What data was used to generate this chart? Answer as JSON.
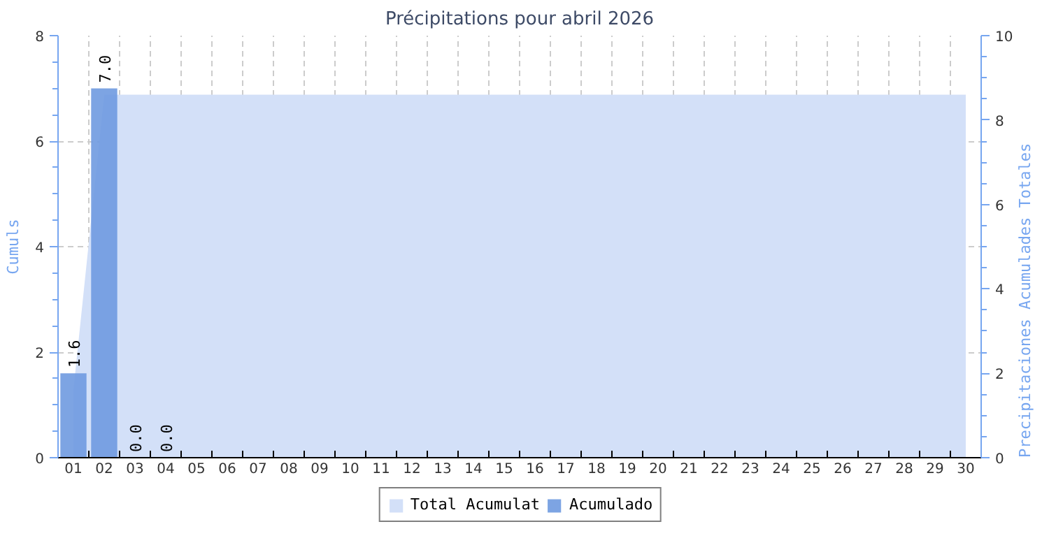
{
  "chart_data": {
    "type": "bar",
    "title": "Précipitations pour abril 2026",
    "ylabel": "Cumuls",
    "y2label": "Precipitaciones Acumulades Totales",
    "categories": [
      "01",
      "02",
      "03",
      "04",
      "05",
      "06",
      "07",
      "08",
      "09",
      "10",
      "11",
      "12",
      "13",
      "14",
      "15",
      "16",
      "17",
      "18",
      "19",
      "20",
      "21",
      "22",
      "23",
      "24",
      "25",
      "26",
      "27",
      "28",
      "29",
      "30"
    ],
    "series": [
      {
        "name": "Total Acumulat",
        "type": "area",
        "axis": "y2",
        "color": "#d3e0f8",
        "values": [
          1.6,
          8.6,
          8.6,
          8.6,
          8.6,
          8.6,
          8.6,
          8.6,
          8.6,
          8.6,
          8.6,
          8.6,
          8.6,
          8.6,
          8.6,
          8.6,
          8.6,
          8.6,
          8.6,
          8.6,
          8.6,
          8.6,
          8.6,
          8.6,
          8.6,
          8.6,
          8.6,
          8.6,
          8.6,
          8.6
        ]
      },
      {
        "name": "Acumulado",
        "color": "#6f9ae0",
        "values": [
          1.6,
          7.0,
          0.0,
          0.0,
          null,
          null,
          null,
          null,
          null,
          null,
          null,
          null,
          null,
          null,
          null,
          null,
          null,
          null,
          null,
          null,
          null,
          null,
          null,
          null,
          null,
          null,
          null,
          null,
          null,
          null
        ],
        "value_labels": [
          "1.6",
          "7.0",
          "0.0",
          "0.0",
          null,
          null,
          null,
          null,
          null,
          null,
          null,
          null,
          null,
          null,
          null,
          null,
          null,
          null,
          null,
          null,
          null,
          null,
          null,
          null,
          null,
          null,
          null,
          null,
          null,
          null
        ]
      }
    ],
    "ylim": [
      0,
      8
    ],
    "yticks": [
      0,
      {
        "value": 0.5,
        "label": null
      },
      {
        "value": 1,
        "label": null
      },
      {
        "value": 1.5,
        "label": null
      },
      2,
      {
        "value": 2.5,
        "label": null
      },
      {
        "value": 3,
        "label": null
      },
      {
        "value": 3.5,
        "label": null
      },
      4,
      {
        "value": 4.5,
        "label": null
      },
      {
        "value": 5,
        "label": null
      },
      {
        "value": 5.5,
        "label": null
      },
      6,
      {
        "value": 6.5,
        "label": null
      },
      {
        "value": 7,
        "label": null
      },
      {
        "value": 7.5,
        "label": null
      },
      8
    ],
    "y2lim": [
      0,
      10
    ],
    "y2ticks": [
      0,
      {
        "value": 0.5,
        "label": null
      },
      {
        "value": 1,
        "label": null
      },
      {
        "value": 1.5,
        "label": null
      },
      2,
      {
        "value": 2.5,
        "label": null
      },
      {
        "value": 3,
        "label": null
      },
      {
        "value": 3.5,
        "label": null
      },
      4,
      {
        "value": 4.5,
        "label": null
      },
      {
        "value": 5,
        "label": null
      },
      {
        "value": 5.5,
        "label": null
      },
      6,
      {
        "value": 6.5,
        "label": null
      },
      {
        "value": 7,
        "label": null
      },
      {
        "value": 7.5,
        "label": null
      },
      8,
      {
        "value": 8.5,
        "label": null
      },
      {
        "value": 9,
        "label": null
      },
      {
        "value": 9.5,
        "label": null
      },
      10
    ],
    "grid": true,
    "legend": "bottom"
  }
}
